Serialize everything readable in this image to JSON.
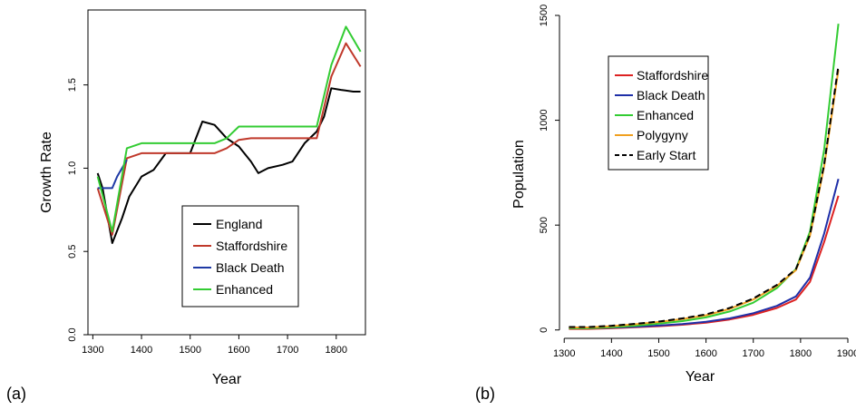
{
  "chart_data": [
    {
      "panel_label": "(a)",
      "type": "line",
      "xlabel": "Year",
      "ylabel": "Growth Rate",
      "xlim": [
        1290,
        1860
      ],
      "ylim": [
        0,
        1.95
      ],
      "x_ticks": [
        "1300",
        "1400",
        "1500",
        "1600",
        "1700",
        "1800"
      ],
      "y_ticks": [
        "0.0",
        "0.5",
        "1.0",
        "1.5"
      ],
      "legend_position": "bottom-right",
      "series": [
        {
          "name": "England",
          "color": "#000000",
          "x": [
            1310,
            1320,
            1340,
            1360,
            1375,
            1400,
            1425,
            1450,
            1475,
            1500,
            1525,
            1550,
            1575,
            1600,
            1625,
            1640,
            1660,
            1690,
            1710,
            1735,
            1760,
            1775,
            1790,
            1810,
            1835,
            1850
          ],
          "y": [
            0.97,
            0.88,
            0.55,
            0.7,
            0.83,
            0.95,
            0.99,
            1.09,
            1.09,
            1.09,
            1.28,
            1.26,
            1.18,
            1.13,
            1.04,
            0.97,
            1.0,
            1.02,
            1.04,
            1.15,
            1.22,
            1.31,
            1.48,
            1.47,
            1.46,
            1.46
          ]
        },
        {
          "name": "Staffordshire",
          "color": "#c0392b",
          "x": [
            1310,
            1340,
            1370,
            1400,
            1450,
            1500,
            1550,
            1575,
            1600,
            1625,
            1650,
            1700,
            1760,
            1790,
            1820,
            1850
          ],
          "y": [
            0.88,
            0.6,
            1.06,
            1.09,
            1.09,
            1.09,
            1.09,
            1.12,
            1.17,
            1.18,
            1.18,
            1.18,
            1.18,
            1.55,
            1.75,
            1.61
          ]
        },
        {
          "name": "Black Death",
          "color": "#1f3aa5",
          "x": [
            1310,
            1330,
            1340,
            1350,
            1370
          ],
          "y": [
            0.88,
            0.88,
            0.88,
            0.95,
            1.05
          ]
        },
        {
          "name": "Enhanced",
          "color": "#33cc33",
          "x": [
            1310,
            1340,
            1370,
            1400,
            1450,
            1500,
            1550,
            1575,
            1600,
            1625,
            1650,
            1700,
            1760,
            1790,
            1820,
            1850
          ],
          "y": [
            0.95,
            0.62,
            1.12,
            1.15,
            1.15,
            1.15,
            1.15,
            1.18,
            1.25,
            1.25,
            1.25,
            1.25,
            1.25,
            1.62,
            1.85,
            1.7
          ]
        }
      ]
    },
    {
      "panel_label": "(b)",
      "type": "line",
      "xlabel": "Year",
      "ylabel": "Population",
      "xlim": [
        1290,
        1900
      ],
      "ylim": [
        -40,
        1500
      ],
      "x_ticks": [
        "1300",
        "1400",
        "1500",
        "1600",
        "1700",
        "1800",
        "1900"
      ],
      "y_ticks": [
        "0",
        "500",
        "1000",
        "1500"
      ],
      "legend_position": "top-left",
      "series": [
        {
          "name": "Staffordshire",
          "color": "#dd2222",
          "x": [
            1310,
            1350,
            1400,
            1450,
            1500,
            1550,
            1600,
            1650,
            1700,
            1750,
            1790,
            1820,
            1850,
            1880
          ],
          "y": [
            5,
            5,
            8,
            13,
            18,
            25,
            35,
            50,
            72,
            105,
            145,
            230,
            420,
            640
          ]
        },
        {
          "name": "Black Death",
          "color": "#1f2fa8",
          "x": [
            1310,
            1350,
            1400,
            1450,
            1500,
            1550,
            1600,
            1650,
            1700,
            1750,
            1790,
            1820,
            1850,
            1880
          ],
          "y": [
            8,
            8,
            11,
            15,
            21,
            28,
            39,
            55,
            80,
            115,
            160,
            250,
            460,
            720
          ]
        },
        {
          "name": "Enhanced",
          "color": "#33cc33",
          "x": [
            1310,
            1350,
            1400,
            1450,
            1500,
            1550,
            1600,
            1650,
            1700,
            1750,
            1790,
            1820,
            1850,
            1880
          ],
          "y": [
            8,
            8,
            13,
            20,
            30,
            42,
            60,
            88,
            130,
            200,
            290,
            470,
            860,
            1460
          ]
        },
        {
          "name": "Polygyny",
          "color": "#f0a020",
          "x": [
            1310,
            1350,
            1400,
            1450,
            1500,
            1550,
            1600,
            1650,
            1700,
            1750,
            1790,
            1820,
            1850,
            1880
          ],
          "y": [
            12,
            12,
            18,
            27,
            38,
            52,
            70,
            100,
            145,
            210,
            285,
            450,
            780,
            1240
          ]
        },
        {
          "name": "Early Start",
          "color": "#000000",
          "dashed": true,
          "x": [
            1310,
            1350,
            1400,
            1450,
            1500,
            1550,
            1600,
            1650,
            1700,
            1750,
            1790,
            1820,
            1850,
            1880
          ],
          "y": [
            14,
            14,
            20,
            29,
            40,
            55,
            74,
            105,
            150,
            215,
            290,
            455,
            790,
            1260
          ]
        }
      ]
    }
  ]
}
